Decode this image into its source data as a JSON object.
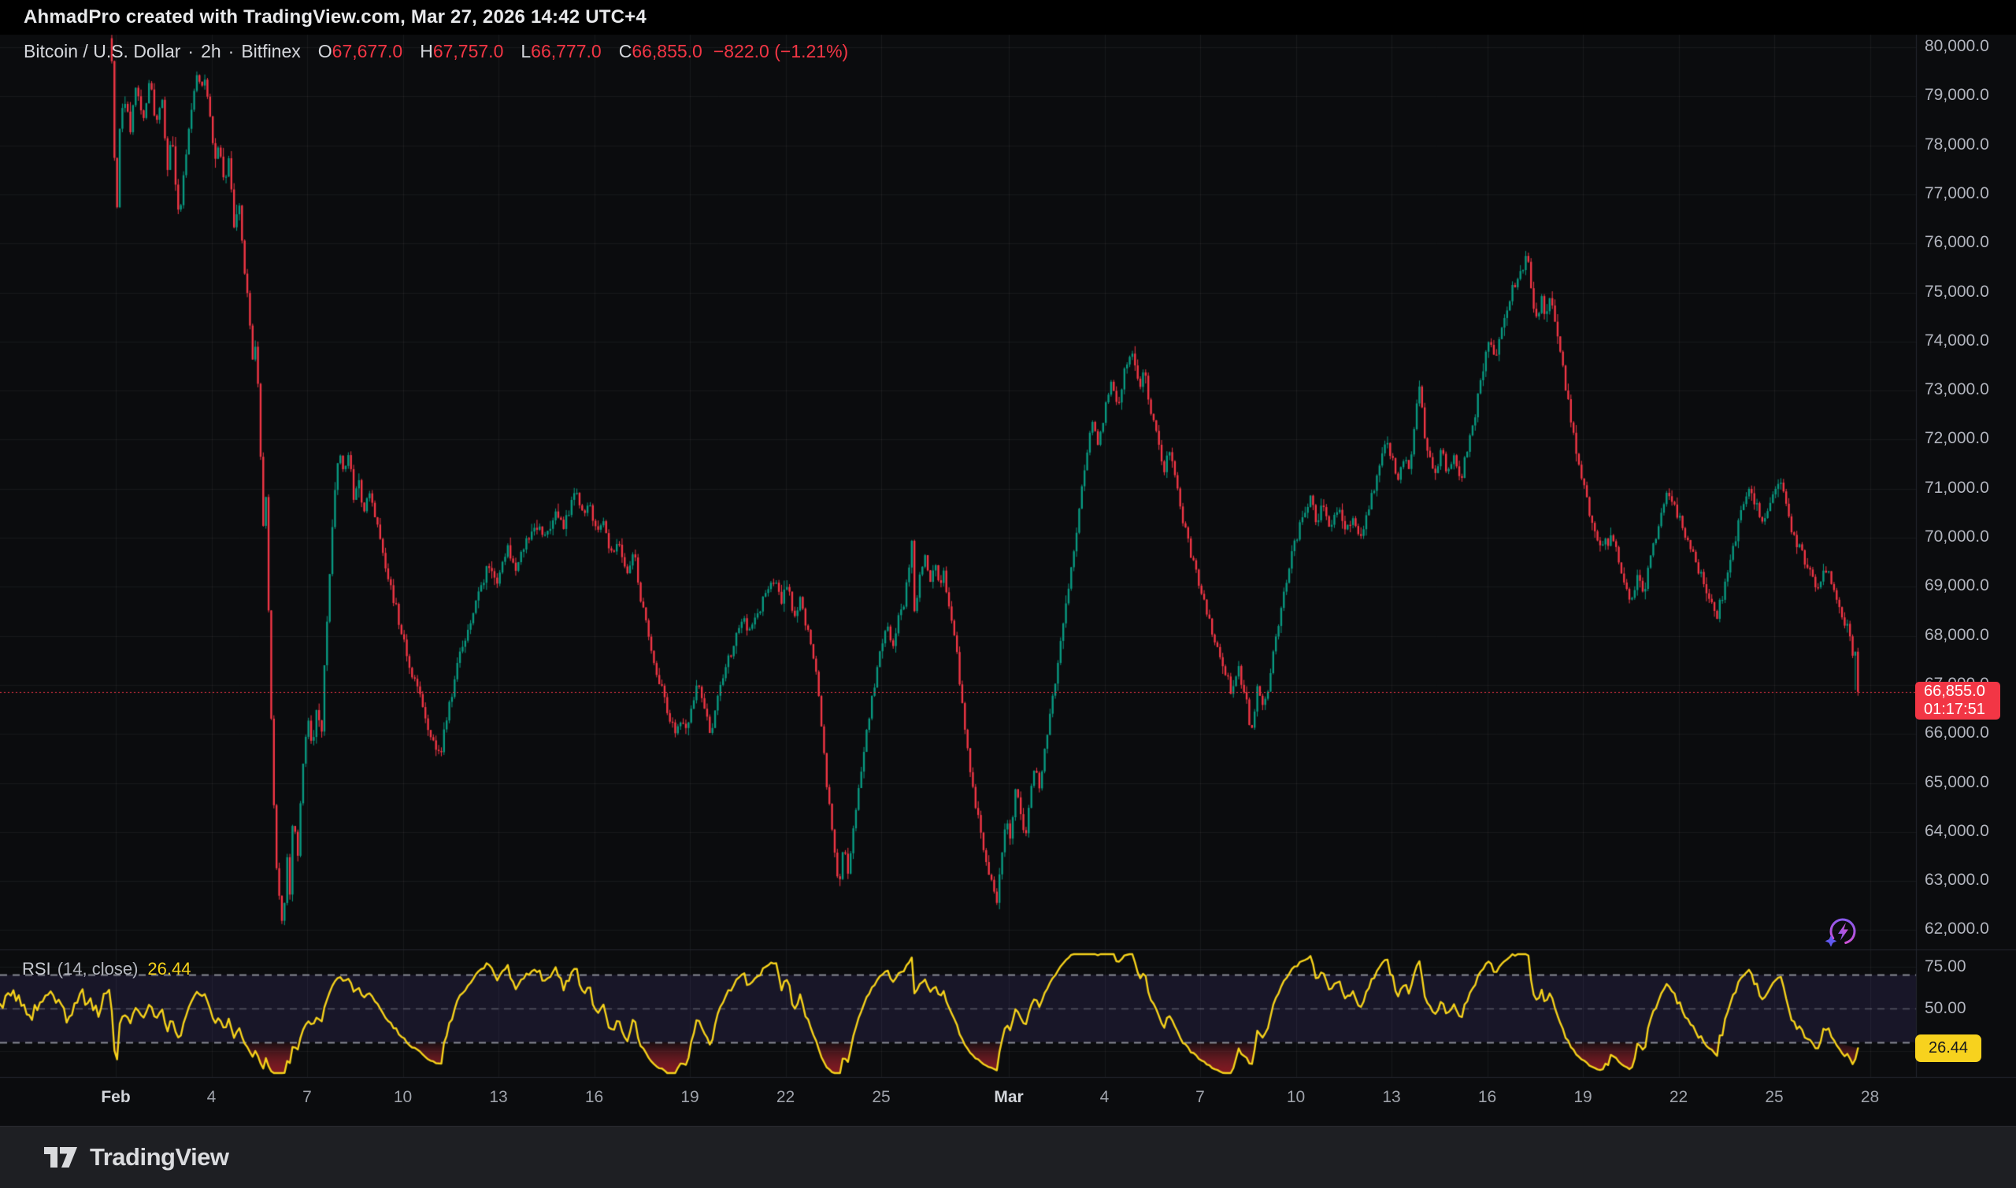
{
  "header": {
    "attribution": "AhmadPro created with TradingView.com, Mar 27, 2026 14:42 UTC+4"
  },
  "legend": {
    "symbol": "Bitcoin / U.S. Dollar",
    "separator": "·",
    "interval": "2h",
    "exchange": "Bitfinex",
    "ohlc": {
      "o_label": "O",
      "o": "67,677.0",
      "h_label": "H",
      "h": "67,757.0",
      "l_label": "L",
      "l": "66,777.0",
      "c_label": "C",
      "c": "66,855.0",
      "change": "−822.0 (−1.21%)"
    }
  },
  "price_scale": {
    "labels": [
      {
        "text": "80,000.0",
        "value": 80000
      },
      {
        "text": "79,000.0",
        "value": 79000
      },
      {
        "text": "78,000.0",
        "value": 78000
      },
      {
        "text": "77,000.0",
        "value": 77000
      },
      {
        "text": "76,000.0",
        "value": 76000
      },
      {
        "text": "75,000.0",
        "value": 75000
      },
      {
        "text": "74,000.0",
        "value": 74000
      },
      {
        "text": "73,000.0",
        "value": 73000
      },
      {
        "text": "72,000.0",
        "value": 72000
      },
      {
        "text": "71,000.0",
        "value": 71000
      },
      {
        "text": "70,000.0",
        "value": 70000
      },
      {
        "text": "69,000.0",
        "value": 69000
      },
      {
        "text": "68,000.0",
        "value": 68000
      },
      {
        "text": "67,000.0",
        "value": 67000
      },
      {
        "text": "66,000.0",
        "value": 66000
      },
      {
        "text": "65,000.0",
        "value": 65000
      },
      {
        "text": "64,000.0",
        "value": 64000
      },
      {
        "text": "63,000.0",
        "value": 63000
      },
      {
        "text": "62,000.0",
        "value": 62000
      }
    ],
    "badge": {
      "price": "66,855.0",
      "countdown": "01:17:51"
    }
  },
  "rsi_pane": {
    "title": "RSI",
    "params": "(14, close)",
    "value": "26.44",
    "badge": "26.44",
    "scale_labels": [
      {
        "text": "75.00",
        "value": 75
      },
      {
        "text": "50.00",
        "value": 50
      }
    ],
    "bands": {
      "upper": 70,
      "middle": 50,
      "lower": 30
    }
  },
  "time_scale": {
    "ticks": [
      {
        "label": "Feb",
        "day": 0,
        "major": true
      },
      {
        "label": "4",
        "day": 3
      },
      {
        "label": "7",
        "day": 6
      },
      {
        "label": "10",
        "day": 9
      },
      {
        "label": "13",
        "day": 12
      },
      {
        "label": "16",
        "day": 15
      },
      {
        "label": "19",
        "day": 18
      },
      {
        "label": "22",
        "day": 21
      },
      {
        "label": "25",
        "day": 24
      },
      {
        "label": "Mar",
        "day": 28,
        "major": true
      },
      {
        "label": "4",
        "day": 31
      },
      {
        "label": "7",
        "day": 34
      },
      {
        "label": "10",
        "day": 37
      },
      {
        "label": "13",
        "day": 40
      },
      {
        "label": "16",
        "day": 43
      },
      {
        "label": "19",
        "day": 46
      },
      {
        "label": "22",
        "day": 49
      },
      {
        "label": "25",
        "day": 52
      },
      {
        "label": "28",
        "day": 55
      }
    ]
  },
  "footer": {
    "brand": "TradingView"
  },
  "icons": {
    "spark": "spark-lightning-icon",
    "logo": "tradingview-logo-icon"
  },
  "colors": {
    "background": "#0B0C0E",
    "header_bg": "#000000",
    "grid": "rgba(255,255,255,0.055)",
    "up": "#089981",
    "down": "#F23645",
    "price_line": "#F23645",
    "badge_red": "#F23645",
    "badge_yellow": "#F7D21E",
    "rsi_line": "#F6D21B",
    "rsi_band_fill": "rgba(116,92,220,0.13)",
    "rsi_dashed": "rgba(158,161,170,0.85)",
    "rsi_oversold_fill": "rgba(160,28,38,0.8)",
    "axis_text": "#B2B5BE",
    "border": "#23262E",
    "footer_bg": "#1E1F23"
  },
  "chart_data": {
    "type": "candlestick",
    "symbol": "BTCUSD",
    "exchange": "Bitfinex",
    "timeframe": "2h",
    "price_axis": {
      "min": 61380,
      "max": 80257,
      "tick_step": 1000
    },
    "time_axis": {
      "start_day": -0.25,
      "end_day": 54.583,
      "day0_date": "Feb 1",
      "tick_interval_days": 3
    },
    "current_price": 66855.0,
    "last_candle": {
      "o": 67677.0,
      "h": 67757.0,
      "l": 66777.0,
      "c": 66855.0
    },
    "rsi": {
      "period": 14,
      "source": "close",
      "last_value": 26.44,
      "overbought": 70,
      "oversold": 30
    },
    "price_keyframes": [
      [
        -5,
        79300
      ],
      [
        -4.4,
        79900
      ],
      [
        -3.8,
        79200
      ],
      [
        -3.2,
        79850
      ],
      [
        -2.6,
        79400
      ],
      [
        -2,
        80000
      ],
      [
        -1.5,
        79500
      ],
      [
        -1,
        79900
      ],
      [
        -0.5,
        79650
      ],
      [
        -0.2,
        80250
      ],
      [
        -0.05,
        79600
      ],
      [
        0.05,
        76100
      ],
      [
        0.15,
        78300
      ],
      [
        0.3,
        79000
      ],
      [
        0.5,
        78300
      ],
      [
        0.7,
        79300
      ],
      [
        0.9,
        78500
      ],
      [
        1.1,
        79400
      ],
      [
        1.3,
        78400
      ],
      [
        1.5,
        78900
      ],
      [
        1.65,
        77500
      ],
      [
        1.8,
        78200
      ],
      [
        1.9,
        77200
      ],
      [
        2.05,
        76500
      ],
      [
        2.2,
        77500
      ],
      [
        2.4,
        78700
      ],
      [
        2.55,
        79500
      ],
      [
        2.7,
        79200
      ],
      [
        2.85,
        79450
      ],
      [
        3,
        78700
      ],
      [
        3.15,
        77600
      ],
      [
        3.3,
        78100
      ],
      [
        3.45,
        77100
      ],
      [
        3.6,
        77700
      ],
      [
        3.75,
        76400
      ],
      [
        3.9,
        76900
      ],
      [
        4.05,
        75700
      ],
      [
        4.2,
        74700
      ],
      [
        4.35,
        73600
      ],
      [
        4.45,
        74000
      ],
      [
        4.55,
        72400
      ],
      [
        4.65,
        70200
      ],
      [
        4.75,
        70800
      ],
      [
        4.85,
        68100
      ],
      [
        4.95,
        65300
      ],
      [
        5.1,
        63100
      ],
      [
        5.3,
        61900
      ],
      [
        5.4,
        63700
      ],
      [
        5.5,
        62800
      ],
      [
        5.6,
        64400
      ],
      [
        5.75,
        63600
      ],
      [
        5.9,
        65300
      ],
      [
        6.05,
        66400
      ],
      [
        6.2,
        65700
      ],
      [
        6.35,
        66500
      ],
      [
        6.5,
        66000
      ],
      [
        6.6,
        67600
      ],
      [
        6.75,
        69200
      ],
      [
        6.9,
        70900
      ],
      [
        7.05,
        71900
      ],
      [
        7.2,
        71300
      ],
      [
        7.35,
        71800
      ],
      [
        7.5,
        70800
      ],
      [
        7.65,
        71300
      ],
      [
        7.8,
        70500
      ],
      [
        8,
        70900
      ],
      [
        8.2,
        70300
      ],
      [
        8.45,
        69600
      ],
      [
        8.7,
        68900
      ],
      [
        9,
        68100
      ],
      [
        9.3,
        67300
      ],
      [
        9.6,
        66700
      ],
      [
        9.9,
        66000
      ],
      [
        10.2,
        65550
      ],
      [
        10.5,
        66600
      ],
      [
        10.8,
        67500
      ],
      [
        11.1,
        68200
      ],
      [
        11.4,
        68800
      ],
      [
        11.7,
        69400
      ],
      [
        12,
        69100
      ],
      [
        12.3,
        69800
      ],
      [
        12.6,
        69400
      ],
      [
        12.9,
        69900
      ],
      [
        13.2,
        70300
      ],
      [
        13.5,
        70000
      ],
      [
        13.8,
        70500
      ],
      [
        14.1,
        70200
      ],
      [
        14.3,
        70700
      ],
      [
        14.5,
        71000
      ],
      [
        14.7,
        70400
      ],
      [
        14.9,
        70700
      ],
      [
        15.1,
        70100
      ],
      [
        15.3,
        70400
      ],
      [
        15.55,
        69600
      ],
      [
        15.8,
        69900
      ],
      [
        16.05,
        69300
      ],
      [
        16.3,
        69700
      ],
      [
        16.45,
        68900
      ],
      [
        16.6,
        68500
      ],
      [
        16.8,
        67900
      ],
      [
        17,
        67300
      ],
      [
        17.2,
        66800
      ],
      [
        17.4,
        66300
      ],
      [
        17.6,
        66000
      ],
      [
        17.8,
        66400
      ],
      [
        17.95,
        65950
      ],
      [
        18.1,
        66600
      ],
      [
        18.3,
        67100
      ],
      [
        18.5,
        66500
      ],
      [
        18.7,
        65950
      ],
      [
        18.85,
        66500
      ],
      [
        19,
        67000
      ],
      [
        19.2,
        67400
      ],
      [
        19.45,
        67900
      ],
      [
        19.7,
        68300
      ],
      [
        19.95,
        68100
      ],
      [
        20.2,
        68500
      ],
      [
        20.45,
        68900
      ],
      [
        20.7,
        69100
      ],
      [
        20.9,
        68700
      ],
      [
        21.1,
        69000
      ],
      [
        21.3,
        68400
      ],
      [
        21.5,
        68700
      ],
      [
        21.7,
        68200
      ],
      [
        21.9,
        67700
      ],
      [
        22.05,
        66900
      ],
      [
        22.2,
        65900
      ],
      [
        22.35,
        64900
      ],
      [
        22.5,
        64100
      ],
      [
        22.6,
        63400
      ],
      [
        22.7,
        62850
      ],
      [
        22.85,
        63700
      ],
      [
        23,
        63200
      ],
      [
        23.2,
        64300
      ],
      [
        23.4,
        65200
      ],
      [
        23.6,
        66100
      ],
      [
        23.8,
        66900
      ],
      [
        24,
        67600
      ],
      [
        24.2,
        68200
      ],
      [
        24.4,
        67800
      ],
      [
        24.6,
        68400
      ],
      [
        24.8,
        68800
      ],
      [
        25,
        69950
      ],
      [
        25.1,
        68300
      ],
      [
        25.25,
        69200
      ],
      [
        25.4,
        69600
      ],
      [
        25.55,
        69100
      ],
      [
        25.7,
        69500
      ],
      [
        25.85,
        69000
      ],
      [
        26,
        69300
      ],
      [
        26.15,
        68700
      ],
      [
        26.3,
        68200
      ],
      [
        26.45,
        67400
      ],
      [
        26.6,
        66500
      ],
      [
        26.75,
        65700
      ],
      [
        26.9,
        64900
      ],
      [
        27.1,
        64200
      ],
      [
        27.3,
        63500
      ],
      [
        27.5,
        63000
      ],
      [
        27.65,
        62550
      ],
      [
        27.8,
        63500
      ],
      [
        27.95,
        64300
      ],
      [
        28.1,
        63900
      ],
      [
        28.25,
        64900
      ],
      [
        28.4,
        64500
      ],
      [
        28.55,
        63900
      ],
      [
        28.7,
        64700
      ],
      [
        28.85,
        65300
      ],
      [
        29,
        64900
      ],
      [
        29.15,
        65600
      ],
      [
        29.3,
        66300
      ],
      [
        29.5,
        67100
      ],
      [
        29.7,
        68000
      ],
      [
        29.9,
        68900
      ],
      [
        30.1,
        69800
      ],
      [
        30.3,
        70800
      ],
      [
        30.5,
        71800
      ],
      [
        30.7,
        72400
      ],
      [
        30.85,
        71900
      ],
      [
        31.05,
        72600
      ],
      [
        31.25,
        73100
      ],
      [
        31.45,
        72700
      ],
      [
        31.65,
        73300
      ],
      [
        31.85,
        73800
      ],
      [
        32,
        73500
      ],
      [
        32.15,
        73000
      ],
      [
        32.3,
        73400
      ],
      [
        32.5,
        72600
      ],
      [
        32.7,
        72000
      ],
      [
        32.9,
        71400
      ],
      [
        33.1,
        71800
      ],
      [
        33.3,
        71100
      ],
      [
        33.5,
        70400
      ],
      [
        33.75,
        69700
      ],
      [
        34,
        69100
      ],
      [
        34.25,
        68500
      ],
      [
        34.5,
        67900
      ],
      [
        34.75,
        67400
      ],
      [
        35,
        66900
      ],
      [
        35.25,
        67300
      ],
      [
        35.5,
        66700
      ],
      [
        35.65,
        65950
      ],
      [
        35.85,
        67000
      ],
      [
        36.05,
        66500
      ],
      [
        36.25,
        67300
      ],
      [
        36.5,
        68200
      ],
      [
        36.75,
        69100
      ],
      [
        37,
        69900
      ],
      [
        37.25,
        70400
      ],
      [
        37.5,
        70850
      ],
      [
        37.7,
        70300
      ],
      [
        37.9,
        70700
      ],
      [
        38.1,
        70200
      ],
      [
        38.35,
        70600
      ],
      [
        38.6,
        70100
      ],
      [
        38.85,
        70500
      ],
      [
        39.05,
        70000
      ],
      [
        39.25,
        70400
      ],
      [
        39.45,
        70900
      ],
      [
        39.65,
        71500
      ],
      [
        39.85,
        72000
      ],
      [
        40.05,
        71600
      ],
      [
        40.25,
        71200
      ],
      [
        40.45,
        71600
      ],
      [
        40.6,
        71300
      ],
      [
        40.75,
        72200
      ],
      [
        40.9,
        73300
      ],
      [
        41.05,
        72200
      ],
      [
        41.2,
        71700
      ],
      [
        41.4,
        71300
      ],
      [
        41.6,
        71800
      ],
      [
        41.8,
        71300
      ],
      [
        42,
        71700
      ],
      [
        42.2,
        71200
      ],
      [
        42.4,
        71700
      ],
      [
        42.6,
        72300
      ],
      [
        42.85,
        73200
      ],
      [
        43.1,
        74000
      ],
      [
        43.3,
        73700
      ],
      [
        43.5,
        74300
      ],
      [
        43.7,
        74800
      ],
      [
        43.9,
        75200
      ],
      [
        44.1,
        75500
      ],
      [
        44.3,
        75700
      ],
      [
        44.45,
        74900
      ],
      [
        44.6,
        74400
      ],
      [
        44.75,
        74900
      ],
      [
        44.9,
        74500
      ],
      [
        45.05,
        75000
      ],
      [
        45.2,
        74300
      ],
      [
        45.35,
        73700
      ],
      [
        45.55,
        72900
      ],
      [
        45.75,
        72100
      ],
      [
        45.95,
        71400
      ],
      [
        46.15,
        70800
      ],
      [
        46.35,
        70200
      ],
      [
        46.55,
        69800
      ],
      [
        46.75,
        69900
      ],
      [
        46.95,
        70000
      ],
      [
        47.15,
        69600
      ],
      [
        47.35,
        69100
      ],
      [
        47.5,
        68700
      ],
      [
        47.65,
        69000
      ],
      [
        47.8,
        69200
      ],
      [
        47.95,
        68900
      ],
      [
        48.1,
        69400
      ],
      [
        48.3,
        70000
      ],
      [
        48.5,
        70500
      ],
      [
        48.7,
        70900
      ],
      [
        48.9,
        70600
      ],
      [
        49.1,
        70400
      ],
      [
        49.3,
        70000
      ],
      [
        49.5,
        69700
      ],
      [
        49.7,
        69300
      ],
      [
        49.9,
        68900
      ],
      [
        50.1,
        68600
      ],
      [
        50.25,
        68450
      ],
      [
        50.4,
        68800
      ],
      [
        50.6,
        69300
      ],
      [
        50.8,
        69900
      ],
      [
        51,
        70500
      ],
      [
        51.15,
        70900
      ],
      [
        51.3,
        71100
      ],
      [
        51.45,
        70700
      ],
      [
        51.6,
        70400
      ],
      [
        51.75,
        70300
      ],
      [
        51.9,
        70600
      ],
      [
        52.05,
        70900
      ],
      [
        52.2,
        71150
      ],
      [
        52.35,
        70800
      ],
      [
        52.5,
        70400
      ],
      [
        52.65,
        70000
      ],
      [
        52.8,
        69800
      ],
      [
        52.95,
        69600
      ],
      [
        53.1,
        69400
      ],
      [
        53.25,
        69150
      ],
      [
        53.4,
        68950
      ],
      [
        53.55,
        69200
      ],
      [
        53.7,
        69400
      ],
      [
        53.85,
        69100
      ],
      [
        54,
        68800
      ],
      [
        54.15,
        68500
      ],
      [
        54.3,
        68200
      ],
      [
        54.42,
        68000
      ],
      [
        54.5,
        67677
      ],
      [
        54.583,
        66855
      ]
    ]
  }
}
